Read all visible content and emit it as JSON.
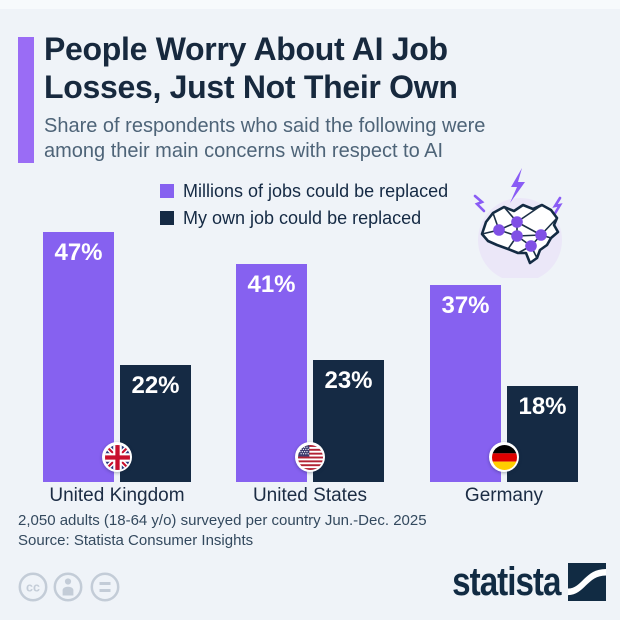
{
  "page": {
    "background": "#eff3f8",
    "accent_color": "#9a6cf5",
    "purple_color": "#8661f0",
    "navy_color": "#152a44"
  },
  "header": {
    "title_line1": "People Worry About AI Job",
    "title_line2": "Losses, Just Not Their Own",
    "subtitle_line1": "Share of respondents who said the following were",
    "subtitle_line2": "among their main concerns with respect to AI"
  },
  "legend": {
    "items": [
      {
        "label": "Millions of jobs could be replaced",
        "color": "#8661f0"
      },
      {
        "label": "My own job could be replaced",
        "color": "#152a44"
      }
    ]
  },
  "chart_data": {
    "type": "bar",
    "title": "People Worry About AI Job Losses, Just Not Their Own",
    "subtitle": "Share of respondents who said the following were among their main concerns with respect to AI",
    "categories": [
      "United Kingdom",
      "United States",
      "Germany"
    ],
    "series": [
      {
        "name": "Millions of jobs could be replaced",
        "color": "#8661f0",
        "values": [
          47,
          41,
          37
        ]
      },
      {
        "name": "My own job could be replaced",
        "color": "#152a44",
        "values": [
          22,
          23,
          18
        ]
      }
    ],
    "value_suffix": "%",
    "ylim": [
      0,
      50
    ],
    "grid": false,
    "legend_position": "top",
    "flags": [
      "uk",
      "us",
      "de"
    ]
  },
  "icons": {
    "brain": "ai-brain-icon",
    "lightning": "lightning-bolt-icon",
    "flags": [
      "uk-flag-icon",
      "us-flag-icon",
      "germany-flag-icon"
    ],
    "license": [
      "cc-icon",
      "attribution-person-icon",
      "equal-sign-icon"
    ],
    "brand_mark": "statista-logo-mark"
  },
  "footer": {
    "note": "2,050 adults (18-64 y/o) surveyed per country Jun.-Dec. 2025",
    "source": "Source: Statista Consumer Insights",
    "brand": "statista"
  }
}
